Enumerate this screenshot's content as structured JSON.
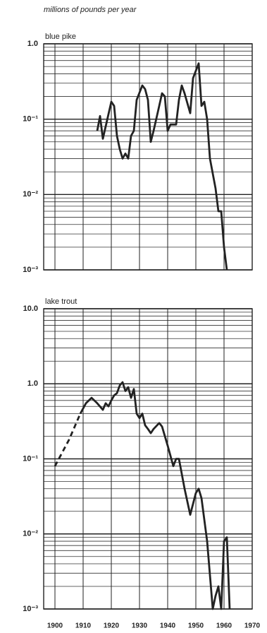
{
  "chart_data": [
    {
      "type": "line",
      "ylabel": "millions of pounds per year",
      "title": "blue pike",
      "log": true,
      "grid": true,
      "show_xtick_labels": false,
      "color": "#222222",
      "xlim": [
        1896,
        1970
      ],
      "xticks": [
        1900,
        1910,
        1920,
        1930,
        1940,
        1950,
        1960,
        1970
      ],
      "ylim": [
        0.001,
        1
      ],
      "yticks": [
        {
          "value": 0.001,
          "label": "10⁻³"
        },
        {
          "value": 0.01,
          "label": "10⁻²"
        },
        {
          "value": 0.1,
          "label": "10⁻¹"
        },
        {
          "value": 1,
          "label": "1.0"
        }
      ],
      "series": [
        {
          "dashed": false,
          "x": [
            1915,
            1916,
            1917,
            1918,
            1920,
            1921,
            1922,
            1923,
            1924,
            1925,
            1926,
            1927,
            1928,
            1929,
            1931,
            1932,
            1933,
            1934,
            1935,
            1937,
            1938,
            1939,
            1940,
            1941,
            1943,
            1944,
            1945,
            1946,
            1948,
            1949,
            1951,
            1952,
            1953,
            1954,
            1955,
            1957,
            1958,
            1959,
            1960,
            1961
          ],
          "values": [
            0.07,
            0.11,
            0.055,
            0.08,
            0.17,
            0.15,
            0.06,
            0.04,
            0.03,
            0.035,
            0.03,
            0.06,
            0.07,
            0.18,
            0.28,
            0.25,
            0.18,
            0.05,
            0.07,
            0.15,
            0.22,
            0.2,
            0.07,
            0.085,
            0.085,
            0.18,
            0.28,
            0.22,
            0.12,
            0.35,
            0.55,
            0.15,
            0.17,
            0.1,
            0.03,
            0.012,
            0.006,
            0.006,
            0.002,
            0.001
          ]
        }
      ]
    },
    {
      "type": "line",
      "title": "lake trout",
      "log": true,
      "grid": true,
      "show_xtick_labels": true,
      "color": "#222222",
      "xlim": [
        1896,
        1970
      ],
      "xticks": [
        1900,
        1910,
        1920,
        1930,
        1940,
        1950,
        1960,
        1970
      ],
      "ylim": [
        0.001,
        10
      ],
      "yticks": [
        {
          "value": 0.001,
          "label": "10⁻³"
        },
        {
          "value": 0.01,
          "label": "10⁻²"
        },
        {
          "value": 0.1,
          "label": "10⁻¹"
        },
        {
          "value": 1,
          "label": "1.0"
        },
        {
          "value": 10,
          "label": "10.0"
        }
      ],
      "series": [
        {
          "dashed": true,
          "x": [
            1900,
            1905,
            1909
          ],
          "values": [
            0.08,
            0.18,
            0.4
          ]
        },
        {
          "dashed": false,
          "x": [
            1909,
            1911,
            1913,
            1915,
            1917,
            1918,
            1919,
            1920,
            1921,
            1922,
            1923,
            1924,
            1925,
            1926,
            1927,
            1928,
            1929,
            1930,
            1931,
            1932,
            1933,
            1934,
            1935,
            1937,
            1938,
            1940,
            1942,
            1943,
            1944,
            1946,
            1948,
            1950,
            1951,
            1952,
            1954,
            1956,
            1957,
            1958,
            1959,
            1960,
            1961,
            1962
          ],
          "values": [
            0.4,
            0.55,
            0.65,
            0.55,
            0.45,
            0.55,
            0.5,
            0.6,
            0.7,
            0.75,
            0.95,
            1.05,
            0.8,
            0.9,
            0.65,
            0.85,
            0.4,
            0.35,
            0.4,
            0.28,
            0.25,
            0.22,
            0.25,
            0.3,
            0.27,
            0.15,
            0.08,
            0.1,
            0.1,
            0.04,
            0.018,
            0.035,
            0.04,
            0.03,
            0.008,
            0.001,
            0.0015,
            0.002,
            0.001,
            0.008,
            0.009,
            0.001
          ]
        }
      ]
    }
  ]
}
